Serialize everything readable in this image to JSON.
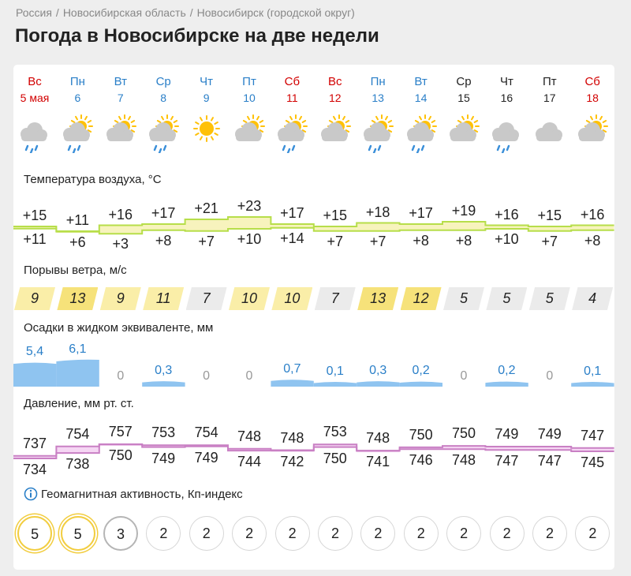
{
  "breadcrumb": [
    "Россия",
    "Новосибирская область",
    "Новосибирск (городской округ)"
  ],
  "title": "Погода в Новосибирске на две недели",
  "days": [
    {
      "dow": "Вс",
      "date": "5 мая",
      "color": "red",
      "icon": "cloud-rain-icon"
    },
    {
      "dow": "Пн",
      "date": "6",
      "color": "blue",
      "icon": "sun-cloud-rain-icon"
    },
    {
      "dow": "Вт",
      "date": "7",
      "color": "blue",
      "icon": "sun-cloud-icon"
    },
    {
      "dow": "Ср",
      "date": "8",
      "color": "blue",
      "icon": "sun-cloud-rain-icon"
    },
    {
      "dow": "Чт",
      "date": "9",
      "color": "blue",
      "icon": "sun-icon"
    },
    {
      "dow": "Пт",
      "date": "10",
      "color": "blue",
      "icon": "sun-cloud-icon"
    },
    {
      "dow": "Сб",
      "date": "11",
      "color": "red",
      "icon": "sun-cloud-rain-icon"
    },
    {
      "dow": "Вс",
      "date": "12",
      "color": "red",
      "icon": "sun-cloud-icon"
    },
    {
      "dow": "Пн",
      "date": "13",
      "color": "blue",
      "icon": "sun-cloud-rain-icon"
    },
    {
      "dow": "Вт",
      "date": "14",
      "color": "blue",
      "icon": "sun-cloud-rain-icon"
    },
    {
      "dow": "Ср",
      "date": "15",
      "color": "black",
      "icon": "sun-cloud-icon"
    },
    {
      "dow": "Чт",
      "date": "16",
      "color": "black",
      "icon": "cloud-rain-icon"
    },
    {
      "dow": "Пт",
      "date": "17",
      "color": "black",
      "icon": "cloud-icon"
    },
    {
      "dow": "Сб",
      "date": "18",
      "color": "red",
      "icon": "sun-cloud-icon"
    }
  ],
  "temperature": {
    "label": "Температура воздуха, °C",
    "max": [
      "+15",
      "+11",
      "+16",
      "+17",
      "+21",
      "+23",
      "+17",
      "+15",
      "+18",
      "+17",
      "+19",
      "+16",
      "+15",
      "+16"
    ],
    "min": [
      "+11",
      "+6",
      "+3",
      "+8",
      "+7",
      "+10",
      "+14",
      "+7",
      "+7",
      "+8",
      "+8",
      "+10",
      "+7",
      "+8"
    ],
    "max_values": [
      15,
      11,
      16,
      17,
      21,
      23,
      17,
      15,
      18,
      17,
      19,
      16,
      15,
      16
    ],
    "min_values": [
      11,
      6,
      3,
      8,
      7,
      10,
      14,
      7,
      7,
      8,
      8,
      10,
      7,
      8
    ]
  },
  "wind": {
    "label": "Порывы ветра, м/с",
    "values": [
      "9",
      "13",
      "9",
      "11",
      "7",
      "10",
      "10",
      "7",
      "13",
      "12",
      "5",
      "5",
      "5",
      "4"
    ],
    "numeric": [
      9,
      13,
      9,
      11,
      7,
      10,
      10,
      7,
      13,
      12,
      5,
      5,
      5,
      4
    ]
  },
  "precip": {
    "label": "Осадки в жидком эквиваленте, мм",
    "values": [
      "5,4",
      "6,1",
      "0",
      "0,3",
      "0",
      "0",
      "0,7",
      "0,1",
      "0,3",
      "0,2",
      "0",
      "0,2",
      "0",
      "0,1"
    ],
    "numeric": [
      5.4,
      6.1,
      0,
      0.3,
      0,
      0,
      0.7,
      0.1,
      0.3,
      0.2,
      0,
      0.2,
      0,
      0.1
    ]
  },
  "pressure": {
    "label": "Давление, мм рт. ст.",
    "max": [
      "737",
      "754",
      "757",
      "753",
      "754",
      "748",
      "748",
      "753",
      "748",
      "750",
      "750",
      "749",
      "749",
      "747"
    ],
    "min": [
      "734",
      "738",
      "750",
      "749",
      "749",
      "744",
      "742",
      "750",
      "741",
      "746",
      "748",
      "747",
      "747",
      "745"
    ],
    "max_values": [
      737,
      754,
      757,
      753,
      754,
      748,
      748,
      753,
      748,
      750,
      750,
      749,
      749,
      747
    ],
    "min_values": [
      734,
      738,
      750,
      749,
      749,
      744,
      742,
      750,
      741,
      746,
      748,
      747,
      747,
      745
    ]
  },
  "geomagnetic": {
    "label": "Геомагнитная активность, Кп-индекс",
    "info_icon": "info-icon",
    "values": [
      "5",
      "5",
      "3",
      "2",
      "2",
      "2",
      "2",
      "2",
      "2",
      "2",
      "2",
      "2",
      "2",
      "2"
    ],
    "numeric": [
      5,
      5,
      3,
      2,
      2,
      2,
      2,
      2,
      2,
      2,
      2,
      2,
      2,
      2
    ]
  },
  "colors": {
    "red": "#d20000",
    "blue": "#2a7fc8",
    "sun": "#ffc107",
    "cloud": "#c9c9c9",
    "rain": "#3a8fd9",
    "temp_fill": "#f7f3bd",
    "temp_line": "#b7de4a",
    "precip": "#8fc4f0",
    "pressure_fill": "#f5d6f3",
    "pressure_line": "#c980c4",
    "geo_high": "#f2cd3f"
  }
}
